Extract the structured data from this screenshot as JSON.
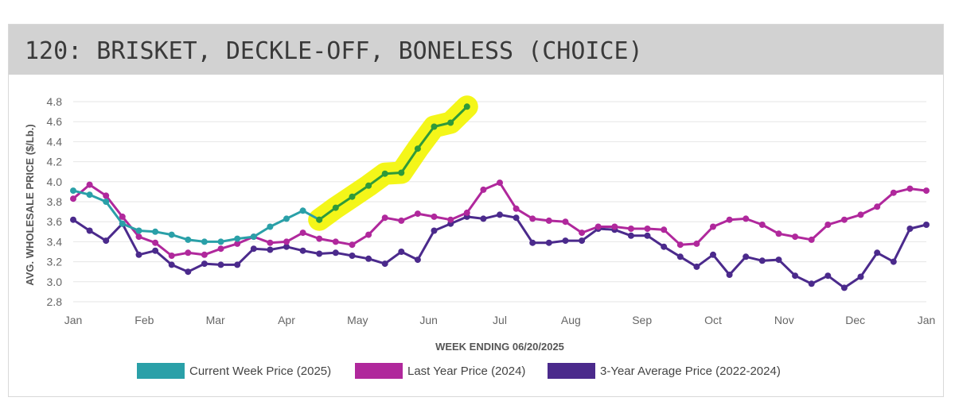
{
  "chart_data": {
    "type": "line",
    "title": "120: BRISKET, DECKLE-OFF, BONELESS (CHOICE)",
    "xlabel": "WEEK ENDING 06/20/2025",
    "ylabel": "AVG. WHOLESALE PRICE ($/Lb.)",
    "ylim": [
      2.8,
      4.8
    ],
    "yticks": [
      "2.8",
      "3.0",
      "3.2",
      "3.4",
      "3.6",
      "3.8",
      "4.0",
      "4.2",
      "4.4",
      "4.6",
      "4.8"
    ],
    "xticks": [
      "Jan",
      "Feb",
      "Mar",
      "Apr",
      "May",
      "Jun",
      "Jul",
      "Aug",
      "Sep",
      "Oct",
      "Nov",
      "Dec",
      "Jan"
    ],
    "x_unit": "week of year",
    "grid": true,
    "legend_position": "bottom",
    "series": [
      {
        "name": "Current Week Price (2025)",
        "color": "#2aa0a8",
        "x": [
          0,
          1,
          2,
          3,
          4,
          5,
          6,
          7,
          8,
          9,
          10,
          11,
          12,
          13,
          14,
          15
        ],
        "values": [
          3.91,
          3.87,
          3.8,
          3.58,
          3.51,
          3.5,
          3.47,
          3.42,
          3.4,
          3.4,
          3.43,
          3.45,
          3.55,
          3.63,
          3.71,
          3.62
        ]
      },
      {
        "name": "",
        "highlighted": true,
        "color": "#2e9a3a",
        "highlight_color": "#f3f500",
        "x": [
          15,
          16,
          17,
          18,
          19,
          20,
          21,
          22,
          23,
          24
        ],
        "values": [
          3.62,
          3.74,
          3.85,
          3.96,
          4.08,
          4.09,
          4.33,
          4.55,
          4.59,
          4.75
        ]
      },
      {
        "name": "Last Year Price (2024)",
        "color": "#b0289c",
        "x": [
          0,
          1,
          2,
          3,
          4,
          5,
          6,
          7,
          8,
          9,
          10,
          11,
          12,
          13,
          14,
          15,
          16,
          17,
          18,
          19,
          20,
          21,
          22,
          23,
          24,
          25,
          26,
          27,
          28,
          29,
          30,
          31,
          32,
          33,
          34,
          35,
          36,
          37,
          38,
          39,
          40,
          41,
          42,
          43,
          44,
          45,
          46,
          47,
          48,
          49,
          50,
          51,
          52
        ],
        "values": [
          3.83,
          3.97,
          3.86,
          3.65,
          3.45,
          3.39,
          3.26,
          3.29,
          3.27,
          3.33,
          3.38,
          3.45,
          3.39,
          3.4,
          3.49,
          3.43,
          3.4,
          3.37,
          3.47,
          3.64,
          3.61,
          3.68,
          3.65,
          3.62,
          3.69,
          3.92,
          3.99,
          3.73,
          3.63,
          3.61,
          3.6,
          3.49,
          3.55,
          3.55,
          3.53,
          3.53,
          3.52,
          3.37,
          3.38,
          3.55,
          3.62,
          3.63,
          3.57,
          3.48,
          3.45,
          3.42,
          3.57,
          3.62,
          3.67,
          3.75,
          3.89,
          3.93,
          3.91
        ]
      },
      {
        "name": "3-Year Average Price (2022-2024)",
        "color": "#4b2a8c",
        "x": [
          0,
          1,
          2,
          3,
          4,
          5,
          6,
          7,
          8,
          9,
          10,
          11,
          12,
          13,
          14,
          15,
          16,
          17,
          18,
          19,
          20,
          21,
          22,
          23,
          24,
          25,
          26,
          27,
          28,
          29,
          30,
          31,
          32,
          33,
          34,
          35,
          36,
          37,
          38,
          39,
          40,
          41,
          42,
          43,
          44,
          45,
          46,
          47,
          48,
          49,
          50,
          51,
          52
        ],
        "values": [
          3.62,
          3.51,
          3.41,
          3.58,
          3.27,
          3.31,
          3.17,
          3.1,
          3.18,
          3.17,
          3.17,
          3.33,
          3.32,
          3.35,
          3.31,
          3.28,
          3.29,
          3.26,
          3.23,
          3.18,
          3.3,
          3.22,
          3.51,
          3.58,
          3.65,
          3.63,
          3.67,
          3.64,
          3.39,
          3.39,
          3.41,
          3.41,
          3.53,
          3.52,
          3.46,
          3.46,
          3.35,
          3.25,
          3.15,
          3.27,
          3.07,
          3.25,
          3.21,
          3.22,
          3.06,
          2.98,
          3.06,
          2.94,
          3.05,
          3.29,
          3.2,
          3.53,
          3.57
        ]
      }
    ]
  }
}
